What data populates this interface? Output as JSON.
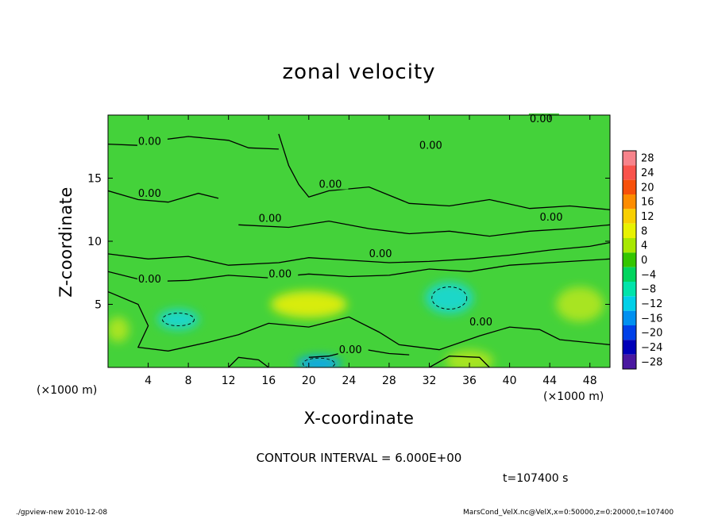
{
  "chart_data": {
    "type": "heatmap",
    "title": "zonal velocity",
    "xlabel": "X-coordinate",
    "ylabel": "Z-coordinate",
    "x_unit_label": "(×1000 m)",
    "xlim": [
      0,
      50
    ],
    "ylim": [
      0,
      20
    ],
    "x_ticks": [
      "4",
      "8",
      "12",
      "16",
      "20",
      "24",
      "28",
      "32",
      "36",
      "40",
      "44",
      "48"
    ],
    "y_ticks": [
      "5",
      "10",
      "15"
    ],
    "colorbar": {
      "levels": [
        "28",
        "24",
        "20",
        "16",
        "12",
        "8",
        "4",
        "0",
        "−4",
        "−8",
        "−12",
        "−16",
        "−20",
        "−24",
        "−28"
      ],
      "colors": [
        "#f7838b",
        "#f9534c",
        "#f7500a",
        "#fd8c00",
        "#f8cf00",
        "#e8f200",
        "#a8e800",
        "#34c600",
        "#00d55e",
        "#00e4aa",
        "#00d0e8",
        "#0090f0",
        "#0040e8",
        "#0000b8",
        "#4a18a0"
      ]
    },
    "contour_labels": [
      "0.00",
      "0.00",
      "0.00",
      "0.00",
      "0.00",
      "0.00",
      "0.00",
      "0.00",
      "0.00",
      "0.00",
      "0.00",
      "0.00"
    ],
    "features": [
      {
        "x": 20,
        "z": 5.0,
        "value": 8,
        "kind": "positive"
      },
      {
        "x": 47,
        "z": 5.0,
        "value": 6,
        "kind": "positive"
      },
      {
        "x": 36,
        "z": 0.5,
        "value": 7,
        "kind": "positive"
      },
      {
        "x": 34,
        "z": 5.5,
        "value": -8,
        "kind": "negative"
      },
      {
        "x": 7,
        "z": 3.8,
        "value": -7,
        "kind": "negative"
      },
      {
        "x": 21,
        "z": 0.3,
        "value": -12,
        "kind": "negative"
      },
      {
        "x": 1,
        "z": 3.0,
        "value": 6,
        "kind": "positive"
      }
    ]
  },
  "annotations": {
    "contour_interval": "CONTOUR INTERVAL = 6.000E+00",
    "time": "t=107400 s",
    "footer_left": "./gpview-new  2010-12-08",
    "footer_right": "MarsCond_VelX.nc@VelX,x=0:50000,z=0:20000,t=107400"
  }
}
